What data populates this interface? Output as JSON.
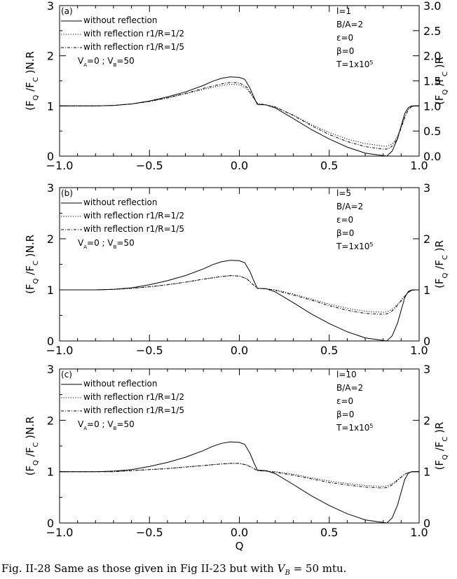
{
  "caption": "Fig. II-28 Same as those given in Fig II-23 but with V_B = 50 mtu.",
  "colors": {
    "ink": "#000000",
    "background": "#ffffff"
  },
  "chart_data": [
    {
      "type": "line",
      "panel_label": "(a)",
      "xlim": [
        -1.0,
        1.0
      ],
      "ylim_left": [
        0,
        3
      ],
      "ylim_right": [
        0,
        3.0
      ],
      "xticks": [
        "-1.0",
        "-0.5",
        "0.0",
        "0.5",
        "1.0"
      ],
      "yticks_left": [
        "0",
        "1",
        "2",
        "3"
      ],
      "yticks_right": [
        "0.0",
        "0.5",
        "1.0",
        "1.5",
        "2.0",
        "2.5",
        "3.0"
      ],
      "ylabel_left": "(F_Q /F_C )N.R",
      "ylabel_right": "(F_Q /F_C )R",
      "xlabel": "",
      "legend": [
        "without reflection",
        "with reflection r1/R=1/2",
        "with reflection r1/R=1/5"
      ],
      "velocity_label": "V_A=0 ; V_B=50",
      "params": [
        "l=1",
        "B/A=2",
        "ε=0",
        "β=0",
        "T=1x10^5"
      ],
      "series": [
        {
          "name": "without reflection",
          "style": "solid",
          "x": [
            -1.0,
            -0.8,
            -0.7,
            -0.6,
            -0.5,
            -0.4,
            -0.3,
            -0.2,
            -0.15,
            -0.1,
            -0.05,
            0.0,
            0.03,
            0.06,
            0.08,
            0.1,
            0.15,
            0.2,
            0.3,
            0.4,
            0.5,
            0.6,
            0.7,
            0.8,
            0.82,
            0.85,
            0.88,
            0.9,
            0.92,
            0.94,
            0.96,
            0.98,
            1.0
          ],
          "values": [
            1.0,
            1.0,
            1.01,
            1.04,
            1.1,
            1.18,
            1.28,
            1.41,
            1.49,
            1.55,
            1.58,
            1.57,
            1.53,
            1.35,
            1.18,
            1.03,
            1.02,
            0.96,
            0.75,
            0.53,
            0.34,
            0.18,
            0.06,
            0.01,
            0.0,
            0.1,
            0.35,
            0.6,
            0.85,
            0.97,
            1.0,
            1.0,
            1.0
          ]
        },
        {
          "name": "with reflection r1/R=1/2",
          "style": "dotted",
          "x": [
            -1.0,
            -0.8,
            -0.7,
            -0.6,
            -0.5,
            -0.4,
            -0.3,
            -0.2,
            -0.1,
            -0.05,
            0.0,
            0.04,
            0.07,
            0.1,
            0.15,
            0.2,
            0.3,
            0.4,
            0.5,
            0.6,
            0.7,
            0.8,
            0.82,
            0.84,
            0.86,
            0.88,
            0.9,
            0.92,
            0.94,
            0.96,
            0.98,
            1.0
          ],
          "values": [
            1.0,
            1.0,
            1.01,
            1.04,
            1.09,
            1.16,
            1.24,
            1.33,
            1.41,
            1.43,
            1.42,
            1.35,
            1.2,
            1.04,
            1.02,
            0.98,
            0.82,
            0.63,
            0.47,
            0.34,
            0.25,
            0.2,
            0.2,
            0.22,
            0.28,
            0.4,
            0.58,
            0.78,
            0.93,
            0.99,
            1.0,
            1.0
          ]
        },
        {
          "name": "with reflection r1/R=1/5",
          "style": "dashdot",
          "x": [
            -1.0,
            -0.8,
            -0.7,
            -0.6,
            -0.5,
            -0.4,
            -0.3,
            -0.2,
            -0.1,
            -0.05,
            0.0,
            0.04,
            0.07,
            0.1,
            0.15,
            0.2,
            0.3,
            0.4,
            0.5,
            0.6,
            0.7,
            0.8,
            0.82,
            0.84,
            0.86,
            0.88,
            0.9,
            0.92,
            0.94,
            0.96,
            0.98,
            1.0
          ],
          "values": [
            1.0,
            1.0,
            1.01,
            1.04,
            1.09,
            1.16,
            1.25,
            1.35,
            1.44,
            1.47,
            1.46,
            1.38,
            1.22,
            1.05,
            1.02,
            0.98,
            0.81,
            0.61,
            0.43,
            0.29,
            0.19,
            0.14,
            0.14,
            0.17,
            0.24,
            0.37,
            0.56,
            0.77,
            0.93,
            0.99,
            1.0,
            1.0
          ]
        }
      ]
    },
    {
      "type": "line",
      "panel_label": "(b)",
      "xlim": [
        -1.0,
        1.0
      ],
      "ylim_left": [
        0,
        3
      ],
      "ylim_right": [
        0,
        3
      ],
      "xticks": [
        "-1.0",
        "-0.5",
        "0.0",
        "0.5",
        "1.0"
      ],
      "yticks_left": [
        "0",
        "1",
        "2",
        "3"
      ],
      "yticks_right": [
        "0",
        "1",
        "2",
        "3"
      ],
      "ylabel_left": "(F_Q /F_C )N.R",
      "ylabel_right": "(F_Q /F_C )R",
      "xlabel": "",
      "legend": [
        "without reflection",
        "with reflection r1/R=1/2",
        "with reflection r1/R=1/5"
      ],
      "velocity_label": "V_A=0 ; V_B=50",
      "params": [
        "l=5",
        "B/A=2",
        "ε=0",
        "β=0",
        "T=1x10^5"
      ],
      "series": [
        {
          "name": "without reflection",
          "style": "solid",
          "x": [
            -1.0,
            -0.8,
            -0.7,
            -0.6,
            -0.5,
            -0.4,
            -0.3,
            -0.2,
            -0.15,
            -0.1,
            -0.05,
            0.0,
            0.03,
            0.06,
            0.08,
            0.1,
            0.15,
            0.2,
            0.3,
            0.4,
            0.5,
            0.6,
            0.7,
            0.8,
            0.82,
            0.85,
            0.88,
            0.9,
            0.92,
            0.94,
            0.96,
            0.98,
            1.0
          ],
          "values": [
            1.0,
            1.0,
            1.01,
            1.04,
            1.1,
            1.18,
            1.28,
            1.41,
            1.49,
            1.55,
            1.58,
            1.57,
            1.53,
            1.35,
            1.18,
            1.03,
            1.02,
            0.96,
            0.75,
            0.53,
            0.34,
            0.18,
            0.06,
            0.01,
            0.0,
            0.1,
            0.35,
            0.6,
            0.85,
            0.97,
            1.0,
            1.0,
            1.0
          ]
        },
        {
          "name": "with reflection r1/R=1/2",
          "style": "dotted",
          "x": [
            -1.0,
            -0.8,
            -0.7,
            -0.6,
            -0.5,
            -0.4,
            -0.3,
            -0.2,
            -0.1,
            -0.05,
            0.0,
            0.04,
            0.07,
            0.1,
            0.15,
            0.2,
            0.3,
            0.4,
            0.5,
            0.6,
            0.7,
            0.8,
            0.82,
            0.84,
            0.86,
            0.88,
            0.9,
            0.92,
            0.94,
            0.96,
            0.98,
            1.0
          ],
          "values": [
            1.0,
            1.0,
            1.01,
            1.03,
            1.06,
            1.1,
            1.15,
            1.21,
            1.26,
            1.28,
            1.27,
            1.22,
            1.12,
            1.03,
            1.02,
            1.0,
            0.92,
            0.82,
            0.72,
            0.64,
            0.58,
            0.56,
            0.57,
            0.6,
            0.65,
            0.72,
            0.8,
            0.88,
            0.95,
            0.99,
            1.0,
            1.0
          ]
        },
        {
          "name": "with reflection r1/R=1/5",
          "style": "dashdot",
          "x": [
            -1.0,
            -0.8,
            -0.7,
            -0.6,
            -0.5,
            -0.4,
            -0.3,
            -0.2,
            -0.1,
            -0.05,
            0.0,
            0.04,
            0.07,
            0.1,
            0.15,
            0.2,
            0.3,
            0.4,
            0.5,
            0.6,
            0.7,
            0.8,
            0.82,
            0.84,
            0.86,
            0.88,
            0.9,
            0.92,
            0.94,
            0.96,
            0.98,
            1.0
          ],
          "values": [
            1.0,
            1.0,
            1.01,
            1.03,
            1.06,
            1.1,
            1.15,
            1.21,
            1.26,
            1.28,
            1.27,
            1.22,
            1.12,
            1.03,
            1.02,
            0.99,
            0.9,
            0.8,
            0.69,
            0.6,
            0.54,
            0.52,
            0.53,
            0.56,
            0.62,
            0.7,
            0.78,
            0.87,
            0.95,
            0.99,
            1.0,
            1.0
          ]
        }
      ]
    },
    {
      "type": "line",
      "panel_label": "(c)",
      "xlim": [
        -1.0,
        1.0
      ],
      "ylim_left": [
        0,
        3
      ],
      "ylim_right": [
        0,
        3
      ],
      "xticks": [
        "-1.0",
        "-0.5",
        "0.0",
        "0.5",
        "1.0"
      ],
      "yticks_left": [
        "0",
        "1",
        "2",
        "3"
      ],
      "yticks_right": [
        "0",
        "1",
        "2",
        "3"
      ],
      "ylabel_left": "(F_Q /F_C )N.R",
      "ylabel_right": "(F_Q /F_C )R",
      "xlabel": "Q",
      "legend": [
        "without reflection",
        "with reflection r1/R=1/2",
        "with reflection r1/R=1/5"
      ],
      "velocity_label": "V_A=0 ; V_B=50",
      "params": [
        "l=10",
        "B/A=2",
        "ε=0",
        "β=0",
        "T=1x10^5"
      ],
      "series": [
        {
          "name": "without reflection",
          "style": "solid",
          "x": [
            -1.0,
            -0.8,
            -0.7,
            -0.6,
            -0.5,
            -0.4,
            -0.3,
            -0.2,
            -0.15,
            -0.1,
            -0.05,
            0.0,
            0.03,
            0.06,
            0.08,
            0.1,
            0.15,
            0.2,
            0.3,
            0.4,
            0.5,
            0.6,
            0.7,
            0.8,
            0.82,
            0.85,
            0.88,
            0.9,
            0.92,
            0.94,
            0.96,
            0.98,
            1.0
          ],
          "values": [
            1.0,
            1.0,
            1.01,
            1.04,
            1.1,
            1.18,
            1.28,
            1.41,
            1.49,
            1.55,
            1.58,
            1.57,
            1.53,
            1.35,
            1.18,
            1.03,
            1.02,
            0.96,
            0.75,
            0.53,
            0.34,
            0.18,
            0.06,
            0.01,
            0.0,
            0.1,
            0.35,
            0.6,
            0.85,
            0.97,
            1.0,
            1.0,
            1.0
          ]
        },
        {
          "name": "with reflection r1/R=1/2",
          "style": "dotted",
          "x": [
            -1.0,
            -0.8,
            -0.7,
            -0.6,
            -0.5,
            -0.4,
            -0.3,
            -0.2,
            -0.1,
            -0.05,
            0.0,
            0.04,
            0.07,
            0.1,
            0.15,
            0.2,
            0.3,
            0.4,
            0.5,
            0.6,
            0.7,
            0.8,
            0.82,
            0.84,
            0.86,
            0.88,
            0.9,
            0.92,
            0.94,
            0.96,
            0.98,
            1.0
          ],
          "values": [
            1.0,
            1.0,
            1.0,
            1.02,
            1.04,
            1.06,
            1.09,
            1.12,
            1.15,
            1.16,
            1.16,
            1.13,
            1.08,
            1.02,
            1.01,
            1.0,
            0.95,
            0.88,
            0.82,
            0.77,
            0.73,
            0.71,
            0.72,
            0.75,
            0.79,
            0.84,
            0.9,
            0.95,
            0.98,
            1.0,
            1.0,
            1.0
          ]
        },
        {
          "name": "with reflection r1/R=1/5",
          "style": "dashdot",
          "x": [
            -1.0,
            -0.8,
            -0.7,
            -0.6,
            -0.5,
            -0.4,
            -0.3,
            -0.2,
            -0.1,
            -0.05,
            0.0,
            0.04,
            0.07,
            0.1,
            0.15,
            0.2,
            0.3,
            0.4,
            0.5,
            0.6,
            0.7,
            0.8,
            0.82,
            0.84,
            0.86,
            0.88,
            0.9,
            0.92,
            0.94,
            0.96,
            0.98,
            1.0
          ],
          "values": [
            1.0,
            1.0,
            1.0,
            1.02,
            1.04,
            1.06,
            1.09,
            1.12,
            1.15,
            1.16,
            1.16,
            1.13,
            1.08,
            1.02,
            1.01,
            0.99,
            0.93,
            0.86,
            0.79,
            0.74,
            0.7,
            0.68,
            0.69,
            0.72,
            0.77,
            0.83,
            0.89,
            0.95,
            0.98,
            1.0,
            1.0,
            1.0
          ]
        }
      ]
    }
  ]
}
